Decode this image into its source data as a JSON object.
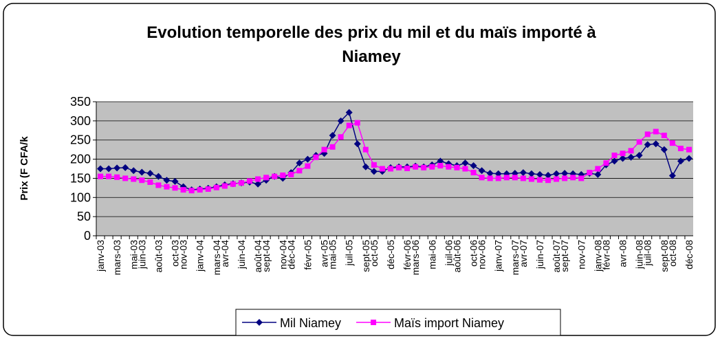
{
  "chart_data": {
    "type": "line",
    "title": "Evolution temporelle des prix du mil et du maïs importé à Niamey",
    "y_label": "Prix (F CFA/k",
    "categories": [
      "janv-03",
      null,
      "mars-03",
      null,
      "mai-03",
      "juin-03",
      null,
      "août-03",
      null,
      "oct-03",
      "nov-03",
      null,
      "janv-04",
      null,
      "mars-04",
      "avr-04",
      null,
      "juin-04",
      null,
      "août-04",
      "sept-04",
      null,
      "nov-04",
      "déc-04",
      null,
      "févr-05",
      null,
      "avr-05",
      "mai-05",
      null,
      "juil-05",
      null,
      "sept-05",
      "oct-05",
      null,
      "déc-05",
      null,
      "févr-06",
      "mars-06",
      null,
      "mai-06",
      null,
      "juil-06",
      "août-06",
      null,
      "oct-06",
      "nov-06",
      null,
      "janv-07",
      null,
      "mars-07",
      "avr-07",
      null,
      "juin-07",
      null,
      "août-07",
      "sept-07",
      null,
      "nov-07",
      null,
      "janv-08",
      "févr-08",
      null,
      "avr-08",
      null,
      "juin-08",
      "juil-08",
      null,
      "sept-08",
      "oct-08",
      null,
      "déc-08"
    ],
    "series": [
      {
        "name": "Mil Niamey",
        "color": "#000080",
        "marker": "diamond",
        "values": [
          175,
          175,
          177,
          178,
          170,
          166,
          163,
          155,
          145,
          142,
          128,
          120,
          122,
          124,
          128,
          133,
          136,
          138,
          140,
          135,
          145,
          155,
          150,
          165,
          190,
          200,
          210,
          215,
          262,
          300,
          322,
          240,
          180,
          168,
          168,
          178,
          180,
          180,
          182,
          180,
          185,
          195,
          188,
          183,
          190,
          183,
          170,
          163,
          162,
          162,
          163,
          165,
          162,
          160,
          158,
          162,
          163,
          162,
          160,
          163,
          160,
          185,
          195,
          202,
          205,
          210,
          238,
          240,
          225,
          157,
          195,
          202
        ]
      },
      {
        "name": "Maïs import Niamey",
        "color": "#ff00ff",
        "marker": "square",
        "values": [
          155,
          155,
          153,
          150,
          148,
          145,
          140,
          132,
          128,
          125,
          120,
          118,
          120,
          122,
          126,
          130,
          135,
          138,
          143,
          148,
          152,
          155,
          158,
          160,
          170,
          182,
          205,
          225,
          232,
          258,
          288,
          295,
          225,
          185,
          175,
          175,
          178,
          176,
          180,
          178,
          180,
          183,
          180,
          178,
          175,
          165,
          152,
          150,
          150,
          152,
          152,
          150,
          148,
          146,
          145,
          148,
          150,
          152,
          150,
          165,
          175,
          190,
          210,
          215,
          222,
          245,
          265,
          272,
          262,
          242,
          228,
          225
        ]
      }
    ],
    "ylim": [
      0,
      350
    ],
    "yticks": [
      0,
      50,
      100,
      150,
      200,
      250,
      300,
      350
    ],
    "grid": true,
    "legend": "bottom"
  }
}
